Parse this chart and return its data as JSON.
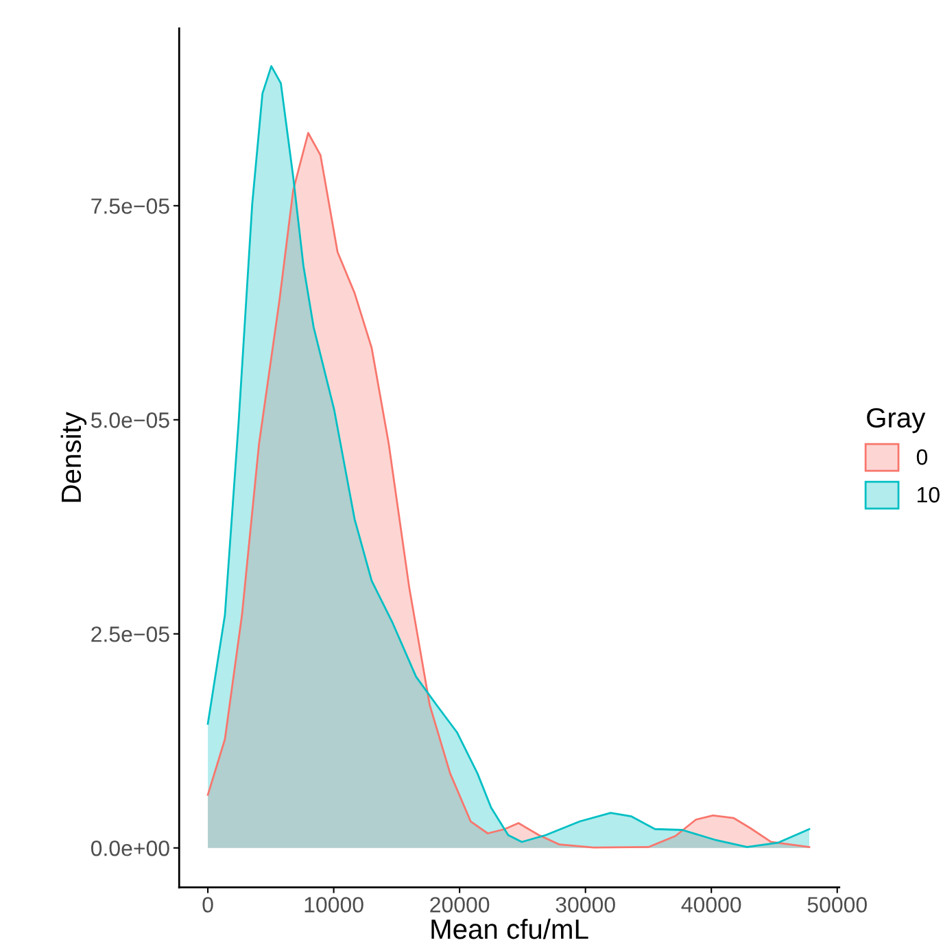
{
  "chart_data": {
    "type": "area",
    "xlabel": "Mean cfu/mL",
    "ylabel": "Density",
    "legend_title": "Gray",
    "legend": "right",
    "grid": false,
    "xlim": [
      -2278,
      50163
    ],
    "ylim": [
      -4.6e-06,
      9.57e-05
    ],
    "xticks": [
      0,
      10000,
      20000,
      30000,
      40000,
      50000
    ],
    "yticks": [
      {
        "value": 0,
        "label": "0.0e+00"
      },
      {
        "value": 2.5e-05,
        "label": "2.5e−05"
      },
      {
        "value": 5e-05,
        "label": "5.0e−05"
      },
      {
        "value": 7.5e-05,
        "label": "7.5e−05"
      }
    ],
    "series": [
      {
        "name": "0",
        "color": "#f8766d",
        "x": [
          0,
          1356,
          2711,
          4067,
          5694,
          6779,
          7972,
          8948,
          10304,
          11659,
          13015,
          14371,
          16000,
          17625,
          19250,
          20880,
          22235,
          23590,
          24675,
          26300,
          27930,
          30640,
          35000,
          37150,
          38770,
          40130,
          41760,
          43110,
          44740,
          47780
        ],
        "values": [
          6.2e-06,
          1.27e-05,
          2.72e-05,
          4.72e-05,
          6.4e-05,
          7.68e-05,
          8.35e-05,
          8.09e-05,
          6.96e-05,
          6.48e-05,
          5.84e-05,
          4.72e-05,
          3.04e-05,
          1.67e-05,
          8.7e-06,
          3.1e-06,
          1.7e-06,
          2.2e-06,
          2.9e-06,
          1.5e-06,
          4e-07,
          5e-08,
          1e-07,
          1.4e-06,
          3.3e-06,
          3.8e-06,
          3.5e-06,
          2.3e-06,
          7e-07,
          1e-07
        ]
      },
      {
        "name": "10",
        "color": "#00bfc4",
        "x": [
          0,
          1356,
          2440,
          3525,
          4338,
          5043,
          5800,
          6779,
          7592,
          8406,
          10033,
          11659,
          13015,
          14642,
          16540,
          18167,
          19794,
          21420,
          22505,
          23861,
          24946,
          26844,
          29555,
          32000,
          33620,
          35520,
          37690,
          40400,
          42840,
          45280,
          47780
        ],
        "values": [
          1.45e-05,
          2.72e-05,
          4.96e-05,
          7.52e-05,
          8.81e-05,
          9.13e-05,
          8.93e-05,
          7.84e-05,
          6.8e-05,
          6.08e-05,
          5.12e-05,
          3.84e-05,
          3.12e-05,
          2.64e-05,
          2e-05,
          1.67e-05,
          1.35e-05,
          8.7e-06,
          4.7e-06,
          1.5e-06,
          7e-07,
          1.5e-06,
          3.1e-06,
          4.1e-06,
          3.7e-06,
          2.2e-06,
          2.1e-06,
          9e-07,
          1e-07,
          6e-07,
          2.2e-06
        ]
      }
    ]
  }
}
